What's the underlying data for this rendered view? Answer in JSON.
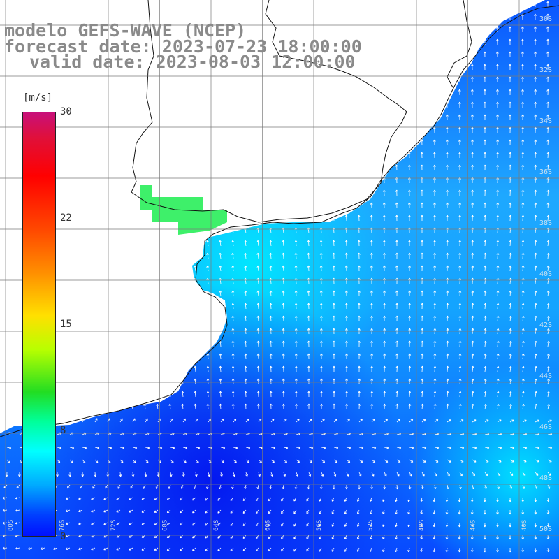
{
  "title": {
    "line1": "modelo GEFS-WAVE (NCEP)",
    "line2": "forecast date: 2023-07-23 18:00:00",
    "line3": "valid date: 2023-08-03 12:00:00"
  },
  "colorbar": {
    "unit": "[m/s]",
    "ticks": [
      "30",
      "22",
      "15",
      "8",
      "0"
    ],
    "colors": [
      "#c8107a",
      "#ff0000",
      "#ff9000",
      "#ffe000",
      "#22dd22",
      "#00ffff",
      "#00aaff",
      "#0010ff"
    ]
  },
  "grid": {
    "lon_labels": [
      "80S",
      "76S",
      "72S",
      "68S",
      "64S",
      "60S",
      "56S",
      "52S",
      "48S",
      "44S",
      "40S"
    ],
    "lat_labels": [
      "30S",
      "32S",
      "34S",
      "36S",
      "38S",
      "40S",
      "42S",
      "44S",
      "46S",
      "48S",
      "50S"
    ]
  },
  "legend_values": {
    "max": 30,
    "min": 0
  }
}
